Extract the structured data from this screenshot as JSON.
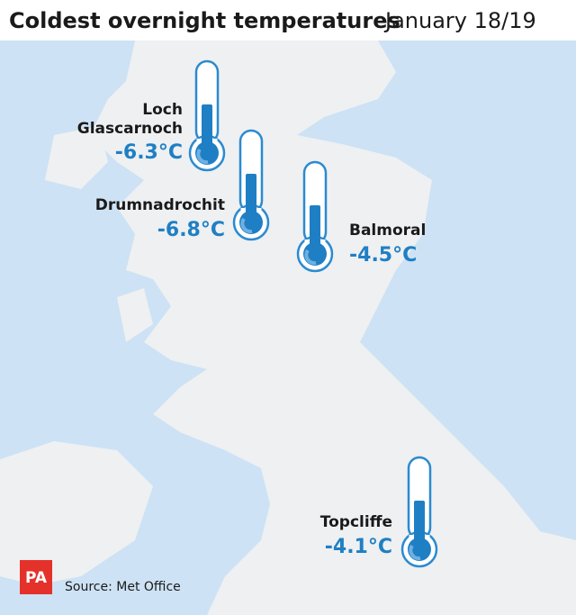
{
  "header": {
    "title": "Coldest overnight temperatures",
    "subtitle": "January 18/19"
  },
  "locations": [
    {
      "name_line1": "Loch",
      "name_line2": "Glascarnoch",
      "temperature": "-6.3°C"
    },
    {
      "name": "Drumnadrochit",
      "temperature": "-6.8°C"
    },
    {
      "name": "Balmoral",
      "temperature": "-4.5°C"
    },
    {
      "name": "Topcliffe",
      "temperature": "-4.1°C"
    }
  ],
  "footer": {
    "logo": "PA",
    "source": "Source: Met Office"
  }
}
